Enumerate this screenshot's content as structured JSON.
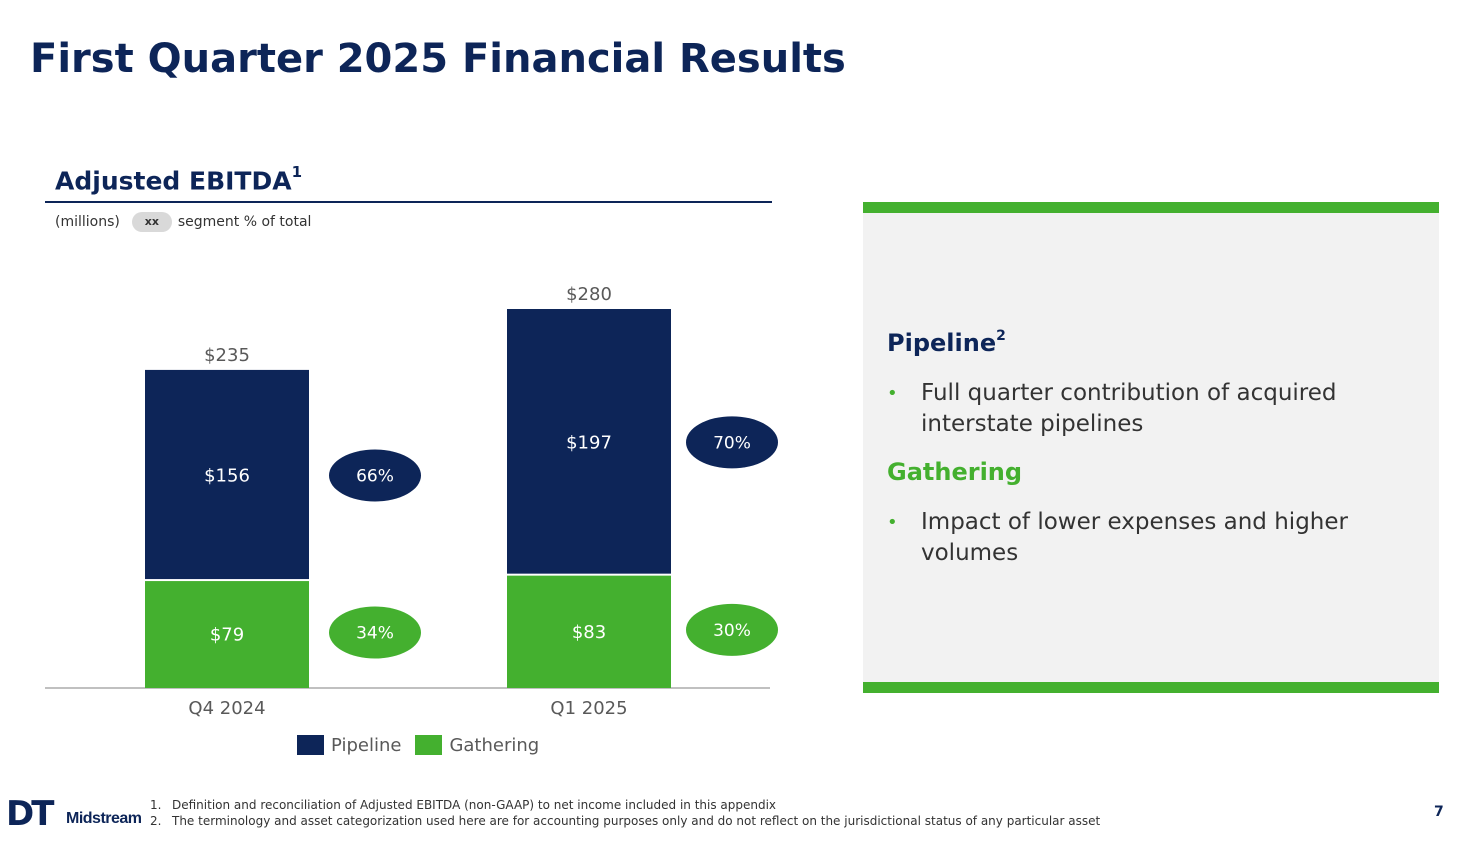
{
  "page": {
    "title": "First Quarter 2025 Financial Results",
    "page_number": "7"
  },
  "chart_data": {
    "type": "bar",
    "stacked": true,
    "title": "Adjusted EBITDA",
    "title_footnote": "1",
    "units": "(millions)",
    "pill_label": "xx",
    "pill_caption": "segment % of total",
    "categories": [
      "Q4 2024",
      "Q1 2025"
    ],
    "series": [
      {
        "name": "Pipeline",
        "values": [
          156,
          197
        ],
        "labels": [
          "$156",
          "$197"
        ],
        "shares": [
          "66%",
          "70%"
        ],
        "color": "#0d2558"
      },
      {
        "name": "Gathering",
        "values": [
          79,
          83
        ],
        "labels": [
          "$79",
          "$83"
        ],
        "shares": [
          "34%",
          "30%"
        ],
        "color": "#44b02f"
      }
    ],
    "totals": [
      235,
      280
    ],
    "total_labels": [
      "$235",
      "$280"
    ],
    "ylim": [
      0,
      280
    ],
    "grid": false,
    "legend": "bottom"
  },
  "panel": {
    "pipeline_heading": "Pipeline",
    "pipeline_footnote": "2",
    "pipeline_bullet": "Full quarter contribution of acquired interstate pipelines",
    "gathering_heading": "Gathering",
    "gathering_bullet": "Impact of lower expenses and higher volumes",
    "bullet_char": "•"
  },
  "footnotes": [
    {
      "num": "1.",
      "text": "Definition and reconciliation of Adjusted EBITDA (non-GAAP) to net income included in this appendix"
    },
    {
      "num": "2.",
      "text": "The terminology and asset categorization used here are for accounting purposes only and do not reflect on the jurisdictional status of any particular asset"
    }
  ],
  "logo": {
    "mark": "DT",
    "word": "Midstream"
  },
  "colors": {
    "navy": "#0d2558",
    "green": "#44b02f",
    "panel_bg": "#f2f2f2"
  }
}
